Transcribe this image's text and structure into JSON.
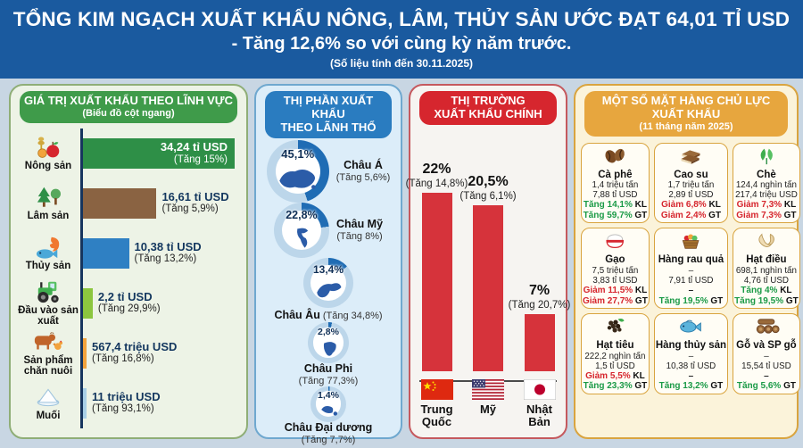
{
  "banner": {
    "line1": "TỔNG KIM NGẠCH XUẤT KHẨU NÔNG, LÂM, THỦY SẢN ƯỚC ĐẠT 64,01 TỈ USD",
    "line2": "- Tăng 12,6% so với cùng kỳ năm trước.",
    "line3": "(Số liệu tính đến 30.11.2025)",
    "bg_color": "#1a5a9f"
  },
  "panel1": {
    "title": "GIÁ TRỊ XUẤT KHẨU THEO LĨNH VỰC",
    "subtitle": "(Biểu đồ cột ngang)",
    "header_color": "#3f9b4a",
    "rows": [
      {
        "icon": "wheat-apple-icon",
        "label": "Nông sản",
        "value": "34,24 tỉ USD",
        "change": "(Tăng 15%)"
      },
      {
        "icon": "forest-trees-icon",
        "label": "Lâm sản",
        "value": "16,61 tỉ USD",
        "change": "(Tăng 5,9%)"
      },
      {
        "icon": "fish-shrimp-icon",
        "label": "Thủy sản",
        "value": "10,38 tỉ USD",
        "change": "(Tăng 13,2%)"
      },
      {
        "icon": "tractor-icon",
        "label": "Đầu vào sản xuất",
        "value": "2,2 tỉ USD",
        "change": "(Tăng 29,9%)"
      },
      {
        "icon": "livestock-icon",
        "label": "Sản phẩm chăn nuôi",
        "value": "567,4 triệu USD",
        "change": "(Tăng 16,8%)"
      },
      {
        "icon": "salt-icon",
        "label": "Muối",
        "value": "11 triệu USD",
        "change": "(Tăng 93,1%)"
      }
    ]
  },
  "panel2": {
    "title_line1": "THỊ PHẦN XUẤT KHẨU",
    "title_line2": "THEO LÃNH THỔ",
    "header_color": "#2a7cc0",
    "items": [
      {
        "icon": "asia-map-icon",
        "pct": "45,1%",
        "name": "Châu Á",
        "change": "(Tăng 5,6%)"
      },
      {
        "icon": "americas-map-icon",
        "pct": "22,8%",
        "name": "Châu Mỹ",
        "change": "(Tăng 8%)"
      },
      {
        "icon": "europe-map-icon",
        "pct": "13,4%",
        "name": "Châu Âu",
        "change": "(Tăng 34,8%)"
      },
      {
        "icon": "africa-map-icon",
        "pct": "2,8%",
        "name": "Châu Phi",
        "change": "(Tăng 77,3%)"
      },
      {
        "icon": "oceania-map-icon",
        "pct": "1,4%",
        "name": "Châu Đại dương",
        "change": "(Tăng 7,7%)"
      }
    ]
  },
  "panel3": {
    "title_line1": "THỊ TRƯỜNG",
    "title_line2": "XUẤT KHẨU CHÍNH",
    "header_color": "#d6262e",
    "bars": [
      {
        "flag": "china-flag-icon",
        "pct": "22%",
        "change": "(Tăng 14,8%)",
        "country": "Trung Quốc"
      },
      {
        "flag": "usa-flag-icon",
        "pct": "20,5%",
        "change": "(Tăng 6,1%)",
        "country": "Mỹ"
      },
      {
        "flag": "japan-flag-icon",
        "pct": "7%",
        "change": "(Tăng 20,7%)",
        "country": "Nhật Bản"
      }
    ]
  },
  "panel4": {
    "title": "MỘT SỐ MẶT HÀNG CHỦ LỰC XUẤT KHẨU",
    "subtitle": "(11 tháng năm 2025)",
    "header_color": "#e7a63e",
    "cells": [
      {
        "icon": "coffee-beans-icon",
        "name": "Cà phê",
        "line1": "1,4 triệu tấn",
        "line2": "7,88 tỉ USD",
        "kl_text": "Tăng 14,1%",
        "kl_dir": "up",
        "kl_suffix": " KL",
        "gt_text": "Tăng 59,7%",
        "gt_dir": "up",
        "gt_suffix": " GT"
      },
      {
        "icon": "rubber-icon",
        "name": "Cao su",
        "line1": "1,7 triệu tấn",
        "line2": "2,89 tỉ USD",
        "kl_text": "Giảm 6,8%",
        "kl_dir": "down",
        "kl_suffix": " KL",
        "gt_text": "Giảm 2,4%",
        "gt_dir": "down",
        "gt_suffix": " GT"
      },
      {
        "icon": "tea-leaves-icon",
        "name": "Chè",
        "line1": "124,4 nghìn tấn",
        "line2": "217,4 triệu USD",
        "kl_text": "Giảm 7,3%",
        "kl_dir": "down",
        "kl_suffix": " KL",
        "gt_text": "Giảm 7,3%",
        "gt_dir": "down",
        "gt_suffix": " GT"
      },
      {
        "icon": "rice-bowl-icon",
        "name": "Gạo",
        "line1": "7,5 triệu tấn",
        "line2": "3,83 tỉ USD",
        "kl_text": "Giảm 11,5%",
        "kl_dir": "down",
        "kl_suffix": " KL",
        "gt_text": "Giảm 27,7%",
        "gt_dir": "down",
        "gt_suffix": " GT"
      },
      {
        "icon": "fruit-basket-icon",
        "name": "Hàng rau quả",
        "line1": "–",
        "line2": "7,91 tỉ USD",
        "kl_text": "–",
        "kl_dir": "flat",
        "kl_suffix": "",
        "gt_text": "Tăng 19,5%",
        "gt_dir": "up",
        "gt_suffix": " GT"
      },
      {
        "icon": "cashew-icon",
        "name": "Hạt điều",
        "line1": "698,1 nghìn tấn",
        "line2": "4,76 tỉ USD",
        "kl_text": "Tăng 4%",
        "kl_dir": "up",
        "kl_suffix": " KL",
        "gt_text": "Tăng 19,5%",
        "gt_dir": "up",
        "gt_suffix": " GT"
      },
      {
        "icon": "pepper-icon",
        "name": "Hạt tiêu",
        "line1": "222,2 nghìn tấn",
        "line2": "1,5 tỉ USD",
        "kl_text": "Giảm 5,5%",
        "kl_dir": "down",
        "kl_suffix": " KL",
        "gt_text": "Tăng 23,3%",
        "gt_dir": "up",
        "gt_suffix": " GT"
      },
      {
        "icon": "seafood-fish-icon",
        "name": "Hàng thủy sản",
        "line1": "–",
        "line2": "10,38 tỉ USD",
        "kl_text": "–",
        "kl_dir": "flat",
        "kl_suffix": "",
        "gt_text": "Tăng 13,2%",
        "gt_dir": "up",
        "gt_suffix": " GT"
      },
      {
        "icon": "wood-logs-icon",
        "name": "Gỗ và SP gỗ",
        "line1": "–",
        "line2": "15,54 tỉ USD",
        "kl_text": "–",
        "kl_dir": "flat",
        "kl_suffix": "",
        "gt_text": "Tăng 5,6%",
        "gt_dir": "up",
        "gt_suffix": " GT"
      }
    ]
  },
  "chart_data": [
    {
      "type": "bar",
      "orientation": "horizontal",
      "title": "GIÁ TRỊ XUẤT KHẨU THEO LĨNH VỰC (Biểu đồ cột ngang)",
      "categories": [
        "Nông sản",
        "Lâm sản",
        "Thủy sản",
        "Đầu vào sản xuất",
        "Sản phẩm chăn nuôi",
        "Muối"
      ],
      "values": [
        34.24,
        16.61,
        10.38,
        2.2,
        0.5674,
        0.011
      ],
      "unit": "tỉ USD",
      "change_pct": [
        15,
        5.9,
        13.2,
        29.9,
        16.8,
        93.1
      ],
      "xmax": 34.24,
      "colors": [
        "#2e8f47",
        "#8a6342",
        "#2f80c3",
        "#8cc63f",
        "#f2a33c",
        "#a8cfe6"
      ]
    },
    {
      "type": "pie",
      "variant": "donut-set",
      "title": "THỊ PHẦN XUẤT KHẨU THEO LÃNH THỔ",
      "categories": [
        "Châu Á",
        "Châu Mỹ",
        "Châu Âu",
        "Châu Phi",
        "Châu Đại dương"
      ],
      "values": [
        45.1,
        22.8,
        13.4,
        2.8,
        1.4
      ],
      "unit": "%",
      "change_pct": [
        5.6,
        8,
        34.8,
        77.3,
        7.7
      ],
      "arc_color": "#1f6cb4",
      "ring_color": "#bcd6ea"
    },
    {
      "type": "bar",
      "orientation": "vertical",
      "title": "THỊ TRƯỜNG XUẤT KHẨU CHÍNH",
      "categories": [
        "Trung Quốc",
        "Mỹ",
        "Nhật Bản"
      ],
      "values": [
        22,
        20.5,
        7
      ],
      "unit": "%",
      "change_pct": [
        14.8,
        6.1,
        20.7
      ],
      "ymax": 22,
      "bar_color": "#d6333b"
    }
  ]
}
